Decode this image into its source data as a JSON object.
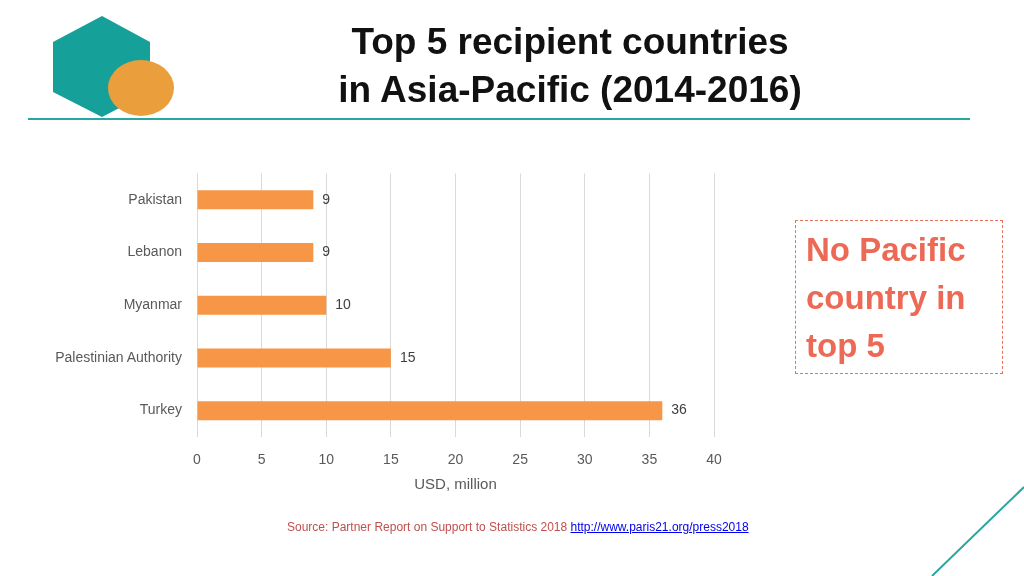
{
  "chart_data": {
    "type": "bar",
    "orientation": "horizontal",
    "title": "Top 5 recipient countries in Asia-Pacific (2014-2016)",
    "xlabel": "USD, million",
    "categories": [
      "Pakistan",
      "Lebanon",
      "Myanmar",
      "Palestinian Authority",
      "Turkey"
    ],
    "values": [
      9,
      9,
      10,
      15,
      36
    ],
    "color": "#f79646",
    "data_labels": true,
    "xlim": [
      0,
      40
    ],
    "xticks": [
      0,
      5,
      10,
      15,
      20,
      25,
      30,
      35,
      40
    ],
    "grid": "x",
    "annotations": [
      "No Pacific country in top 5",
      "Source: Partner Report on Support to Statistics 2018",
      "http://www.paris21.org/press2018"
    ]
  }
}
